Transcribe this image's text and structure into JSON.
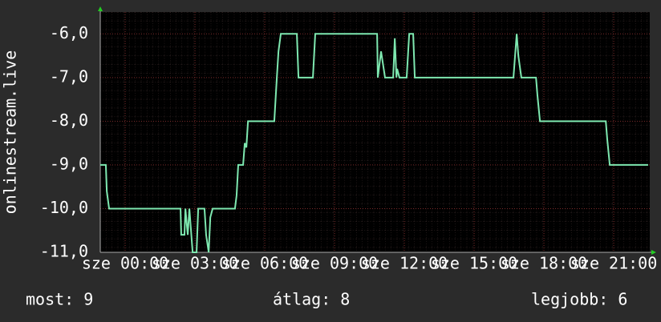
{
  "chart_data": {
    "type": "line",
    "y_label": "onlinestream.live",
    "x": [
      -1.07,
      -0.83,
      -0.79,
      -0.69,
      2.38,
      2.41,
      2.55,
      2.59,
      2.69,
      2.76,
      2.9,
      3.07,
      3.14,
      3.41,
      3.48,
      3.59,
      3.66,
      3.76,
      4.72,
      4.79,
      4.86,
      5.07,
      5.14,
      5.21,
      5.28,
      6.41,
      6.52,
      6.59,
      6.69,
      7.38,
      7.45,
      8.07,
      8.17,
      10.83,
      10.86,
      11.0,
      11.17,
      11.52,
      11.59,
      11.66,
      11.69,
      11.79,
      12.1,
      12.21,
      12.38,
      12.45,
      16.69,
      16.83,
      16.9,
      17.03,
      17.66,
      17.72,
      17.83,
      20.66,
      20.72,
      20.83,
      22.48
    ],
    "series": [
      {
        "name": "onlinestream.live",
        "color": "#7ee8b0",
        "values": [
          -9,
          -9,
          -9.6,
          -10,
          -10,
          -10.6,
          -10.6,
          -10,
          -10.6,
          -10,
          -11,
          -11,
          -10,
          -10,
          -10.6,
          -11,
          -10.2,
          -10,
          -10,
          -9.7,
          -9,
          -9,
          -8.5,
          -8.6,
          -8,
          -8,
          -7,
          -6.4,
          -6,
          -6,
          -7,
          -7,
          -6,
          -6,
          -7,
          -6.4,
          -7,
          -7,
          -6.1,
          -7,
          -6.8,
          -7,
          -7,
          -6,
          -6,
          -7,
          -7,
          -6,
          -6.5,
          -7,
          -7,
          -7.4,
          -8,
          -8,
          -8.4,
          -9,
          -9
        ]
      }
    ],
    "xlim": [
      -1.07,
      22.55
    ],
    "xticks": [
      {
        "value": 0,
        "label": "sze 00:00"
      },
      {
        "value": 3,
        "label": "sze 03:00"
      },
      {
        "value": 6,
        "label": "sze 06:00"
      },
      {
        "value": 9,
        "label": "sze 09:00"
      },
      {
        "value": 12,
        "label": "sze 12:00"
      },
      {
        "value": 15,
        "label": "sze 15:00"
      },
      {
        "value": 18,
        "label": "sze 18:00"
      },
      {
        "value": 21,
        "label": "sze 21:00"
      }
    ],
    "ylim": [
      -11,
      -5.5
    ],
    "yticks": [
      {
        "value": -11,
        "label": "-11,0"
      },
      {
        "value": -10,
        "label": "-10,0"
      },
      {
        "value": -9,
        "label": "-9,0"
      },
      {
        "value": -8,
        "label": "-8,0"
      },
      {
        "value": -7,
        "label": "-7,0"
      },
      {
        "value": -6,
        "label": "-6,0"
      }
    ],
    "grid": true,
    "stats": [
      "most: 9",
      "átlag: 8",
      "legjobb: 6"
    ]
  }
}
